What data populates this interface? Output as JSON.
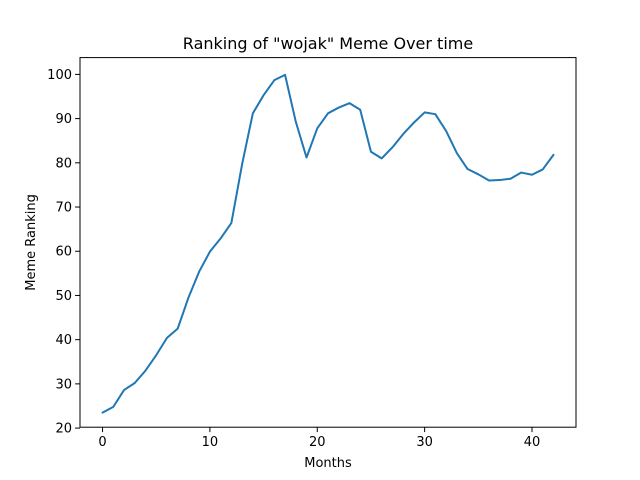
{
  "chart_data": {
    "type": "line",
    "title": "Ranking of \"wojak\" Meme Over time",
    "xlabel": "Months",
    "ylabel": "Meme Ranking",
    "xlim": [
      -2.1,
      44.1
    ],
    "ylim": [
      20.2,
      103.8
    ],
    "xticks": [
      0,
      10,
      20,
      30,
      40
    ],
    "yticks": [
      20,
      30,
      40,
      50,
      60,
      70,
      80,
      90,
      100
    ],
    "grid": false,
    "line_color": "#1f77b4",
    "series": [
      {
        "x": [
          0,
          1,
          2,
          3,
          4,
          5,
          6,
          7,
          8,
          9,
          10,
          11,
          12,
          13,
          14,
          15,
          16,
          17,
          18,
          19,
          20,
          21,
          22,
          23,
          24,
          25,
          26,
          27,
          28,
          29,
          30,
          31,
          32,
          33,
          34,
          35,
          36,
          37,
          38,
          39,
          40,
          41,
          42
        ],
        "values": [
          23.5,
          24.8,
          28.6,
          30.2,
          33.0,
          36.5,
          40.4,
          42.5,
          49.5,
          55.4,
          59.9,
          62.9,
          66.4,
          79.7,
          91.2,
          95.3,
          98.7,
          99.9,
          89.3,
          81.2,
          87.8,
          91.2,
          92.5,
          93.5,
          92.0,
          82.5,
          81.0,
          83.5,
          86.5,
          89.1,
          91.4,
          91.0,
          87.2,
          82.2,
          78.6,
          77.4,
          76.0,
          76.1,
          76.4,
          77.8,
          77.3,
          78.5,
          81.8
        ]
      }
    ]
  }
}
